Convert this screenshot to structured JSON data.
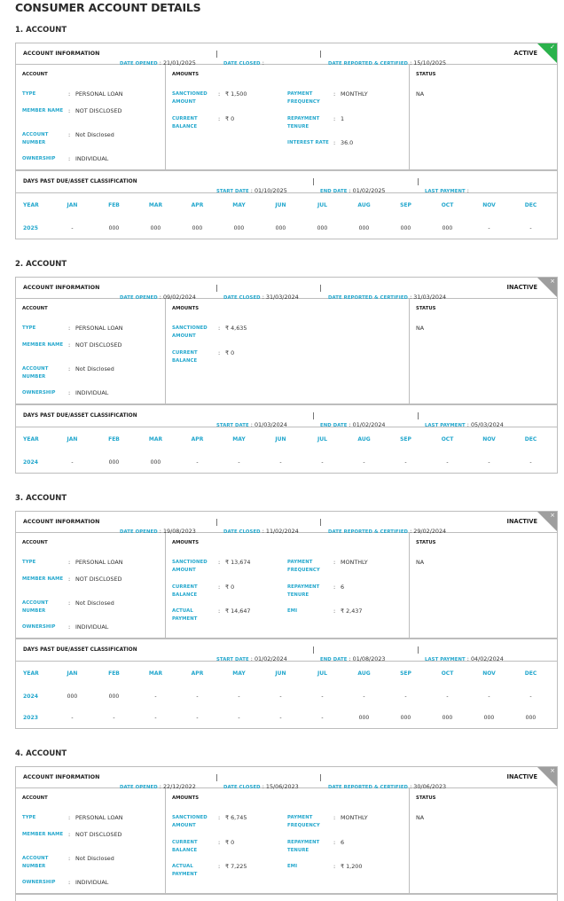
{
  "page_title": "CONSUMER ACCOUNT DETAILS",
  "labels": {
    "account_information": "ACCOUNT INFORMATION",
    "date_opened": "DATE OPENED",
    "date_closed": "DATE CLOSED",
    "date_reported": "DATE REPORTED & CERTIFIED",
    "account": "ACCOUNT",
    "amounts": "AMOUNTS",
    "status": "STATUS",
    "dpd_title": "DAYS PAST DUE/ASSET CLASSIFICATION",
    "start_date": "START DATE",
    "end_date": "END DATE",
    "last_payment": "LAST PAYMENT",
    "months": [
      "YEAR",
      "JAN",
      "FEB",
      "MAR",
      "APR",
      "MAY",
      "JUN",
      "JUL",
      "AUG",
      "SEP",
      "OCT",
      "NOV",
      "DEC"
    ]
  },
  "colors": {
    "accent": "#23a7cd",
    "active": "#2bb24c",
    "inactive": "#9e9e9e"
  },
  "accounts": [
    {
      "title": "1. ACCOUNT",
      "date_opened": "21/01/2025",
      "date_closed": "",
      "date_reported": "15/10/2025",
      "status": "ACTIVE",
      "status_icon": "check-icon",
      "status_glyph": "✓",
      "account_fields": [
        {
          "label": "TYPE",
          "value": "PERSONAL LOAN"
        },
        {
          "label": "MEMBER NAME",
          "value": "NOT DISCLOSED"
        },
        {
          "label": "ACCOUNT NUMBER",
          "value": "Not Disclosed"
        },
        {
          "label": "OWNERSHIP",
          "value": "INDIVIDUAL"
        }
      ],
      "amounts_left": [
        {
          "label": "SANCTIONED AMOUNT",
          "value": "₹ 1,500"
        },
        {
          "label": "CURRENT BALANCE",
          "value": "₹ 0"
        }
      ],
      "amounts_right": [
        {
          "label": "PAYMENT FREQUENCY",
          "value": "MONTHLY"
        },
        {
          "label": "REPAYMENT TENURE",
          "value": "1"
        },
        {
          "label": "INTEREST RATE",
          "value": "36.0"
        }
      ],
      "status_value": "NA",
      "start_date": "01/10/2025",
      "end_date": "01/02/2025",
      "last_payment": "",
      "years": [
        [
          "2025",
          "-",
          "000",
          "000",
          "000",
          "000",
          "000",
          "000",
          "000",
          "000",
          "000",
          "-",
          "-"
        ]
      ]
    },
    {
      "title": "2. ACCOUNT",
      "date_opened": "09/02/2024",
      "date_closed": "31/03/2024",
      "date_reported": "31/03/2024",
      "status": "INACTIVE",
      "status_icon": "close-icon",
      "status_glyph": "×",
      "account_fields": [
        {
          "label": "TYPE",
          "value": "PERSONAL LOAN"
        },
        {
          "label": "MEMBER NAME",
          "value": "NOT DISCLOSED"
        },
        {
          "label": "ACCOUNT NUMBER",
          "value": "Not Disclosed"
        },
        {
          "label": "OWNERSHIP",
          "value": "INDIVIDUAL"
        }
      ],
      "amounts_left": [
        {
          "label": "SANCTIONED AMOUNT",
          "value": "₹ 4,635"
        },
        {
          "label": "CURRENT BALANCE",
          "value": "₹ 0"
        }
      ],
      "amounts_right": [],
      "status_value": "NA",
      "start_date": "01/03/2024",
      "end_date": "01/02/2024",
      "last_payment": "05/03/2024",
      "years": [
        [
          "2024",
          "-",
          "000",
          "000",
          "-",
          "-",
          "-",
          "-",
          "-",
          "-",
          "-",
          "-",
          "-"
        ]
      ]
    },
    {
      "title": "3. ACCOUNT",
      "date_opened": "19/08/2023",
      "date_closed": "11/02/2024",
      "date_reported": "29/02/2024",
      "status": "INACTIVE",
      "status_icon": "close-icon",
      "status_glyph": "×",
      "account_fields": [
        {
          "label": "TYPE",
          "value": "PERSONAL LOAN"
        },
        {
          "label": "MEMBER NAME",
          "value": "NOT DISCLOSED"
        },
        {
          "label": "ACCOUNT NUMBER",
          "value": "Not Disclosed"
        },
        {
          "label": "OWNERSHIP",
          "value": "INDIVIDUAL"
        }
      ],
      "amounts_left": [
        {
          "label": "SANCTIONED AMOUNT",
          "value": "₹ 13,674"
        },
        {
          "label": "CURRENT BALANCE",
          "value": "₹ 0"
        },
        {
          "label": "ACTUAL PAYMENT",
          "value": "₹ 14,647"
        }
      ],
      "amounts_right": [
        {
          "label": "PAYMENT FREQUENCY",
          "value": "MONTHLY"
        },
        {
          "label": "REPAYMENT TENURE",
          "value": "6"
        },
        {
          "label": "EMI",
          "value": "₹ 2,437"
        }
      ],
      "status_value": "NA",
      "start_date": "01/02/2024",
      "end_date": "01/08/2023",
      "last_payment": "04/02/2024",
      "years": [
        [
          "2024",
          "000",
          "000",
          "-",
          "-",
          "-",
          "-",
          "-",
          "-",
          "-",
          "-",
          "-",
          "-"
        ],
        [
          "2023",
          "-",
          "-",
          "-",
          "-",
          "-",
          "-",
          "-",
          "000",
          "000",
          "000",
          "000",
          "000"
        ]
      ]
    },
    {
      "title": "4. ACCOUNT",
      "date_opened": "22/12/2022",
      "date_closed": "15/06/2023",
      "date_reported": "30/06/2023",
      "status": "INACTIVE",
      "status_icon": "close-icon",
      "status_glyph": "×",
      "account_fields": [
        {
          "label": "TYPE",
          "value": "PERSONAL LOAN"
        },
        {
          "label": "MEMBER NAME",
          "value": "NOT DISCLOSED"
        },
        {
          "label": "ACCOUNT NUMBER",
          "value": "Not Disclosed"
        },
        {
          "label": "OWNERSHIP",
          "value": "INDIVIDUAL"
        }
      ],
      "amounts_left": [
        {
          "label": "SANCTIONED AMOUNT",
          "value": "₹ 6,745"
        },
        {
          "label": "CURRENT BALANCE",
          "value": "₹ 0"
        },
        {
          "label": "ACTUAL PAYMENT",
          "value": "₹ 7,225"
        }
      ],
      "amounts_right": [
        {
          "label": "PAYMENT FREQUENCY",
          "value": "MONTHLY"
        },
        {
          "label": "REPAYMENT TENURE",
          "value": "6"
        },
        {
          "label": "EMI",
          "value": "₹ 1,200"
        }
      ],
      "status_value": "NA"
    }
  ]
}
